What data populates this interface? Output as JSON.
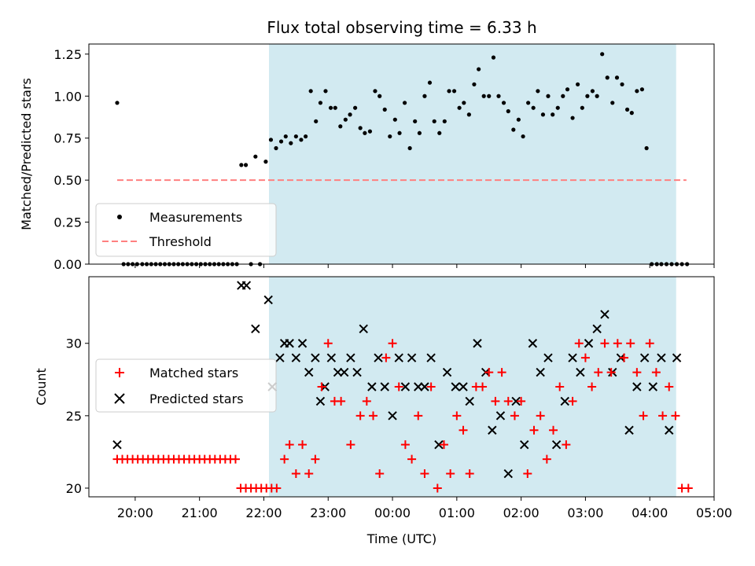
{
  "figure": {
    "title": "Flux total observing time = 6.33 h",
    "xlabel": "Time (UTC)",
    "xticks": [
      "20:00",
      "21:00",
      "22:00",
      "23:00",
      "00:00",
      "01:00",
      "02:00",
      "03:00",
      "04:00",
      "05:00"
    ],
    "x_range_hours": [
      19.28,
      29.0
    ],
    "observing_window_hours": [
      22.08,
      28.41
    ],
    "shade_color": "#add8e6",
    "chart_data": [
      {
        "type": "scatter",
        "ylabel": "Matched/Predicted stars",
        "ylim": [
          0,
          1.31
        ],
        "yticks": [
          "0.00",
          "0.25",
          "0.50",
          "0.75",
          "1.00",
          "1.25"
        ],
        "ytick_values": [
          0,
          0.25,
          0.5,
          0.75,
          1.0,
          1.25
        ],
        "legend": {
          "placement": "lower-left",
          "entries": [
            "Measurements",
            "Threshold"
          ]
        },
        "threshold": {
          "name": "Threshold",
          "value": 0.5,
          "x": [
            19.72,
            28.57
          ],
          "color": "#ff8080",
          "style": "dashed"
        },
        "series": [
          {
            "name": "Measurements",
            "color": "#000000",
            "x": [
              19.72,
              19.82,
              19.89,
              19.96,
              20.03,
              20.11,
              20.18,
              20.25,
              20.32,
              20.39,
              20.46,
              20.53,
              20.6,
              20.67,
              20.74,
              20.81,
              20.88,
              20.95,
              21.02,
              21.09,
              21.16,
              21.23,
              21.3,
              21.37,
              21.44,
              21.51,
              21.58,
              21.65,
              21.72,
              21.8,
              21.87,
              21.94,
              22.03,
              22.11,
              22.19,
              22.27,
              22.34,
              22.42,
              22.5,
              22.58,
              22.65,
              22.73,
              22.81,
              22.88,
              22.96,
              23.04,
              23.11,
              23.19,
              23.27,
              23.34,
              23.42,
              23.5,
              23.57,
              23.65,
              23.73,
              23.8,
              23.88,
              23.96,
              24.04,
              24.11,
              24.19,
              24.27,
              24.35,
              24.42,
              24.5,
              24.58,
              24.65,
              24.73,
              24.81,
              24.88,
              24.96,
              25.04,
              25.11,
              25.19,
              25.27,
              25.34,
              25.42,
              25.5,
              25.57,
              25.65,
              25.73,
              25.8,
              25.88,
              25.96,
              26.03,
              26.11,
              26.19,
              26.26,
              26.34,
              26.42,
              26.49,
              26.57,
              26.65,
              26.72,
              26.8,
              26.88,
              26.95,
              27.03,
              27.11,
              27.18,
              27.26,
              27.34,
              27.42,
              27.49,
              27.57,
              27.65,
              27.72,
              27.8,
              27.88,
              27.95,
              28.03,
              28.11,
              28.18,
              28.26,
              28.34,
              28.42,
              28.5,
              28.58
            ],
            "y": [
              0.96,
              0.0,
              0.0,
              0.0,
              0.0,
              0.0,
              0.0,
              0.0,
              0.0,
              0.0,
              0.0,
              0.0,
              0.0,
              0.0,
              0.0,
              0.0,
              0.0,
              0.0,
              0.0,
              0.0,
              0.0,
              0.0,
              0.0,
              0.0,
              0.0,
              0.0,
              0.0,
              0.59,
              0.59,
              0.0,
              0.64,
              0.0,
              0.61,
              0.74,
              0.69,
              0.73,
              0.76,
              0.72,
              0.76,
              0.74,
              0.76,
              1.03,
              0.85,
              0.96,
              1.03,
              0.93,
              0.93,
              0.82,
              0.86,
              0.89,
              0.93,
              0.81,
              0.78,
              0.79,
              1.03,
              1.0,
              0.92,
              0.76,
              0.86,
              0.78,
              0.96,
              0.69,
              0.85,
              0.78,
              1.0,
              1.08,
              0.85,
              0.78,
              0.85,
              1.03,
              1.03,
              0.93,
              0.96,
              0.89,
              1.07,
              1.16,
              1.0,
              1.0,
              1.23,
              1.0,
              0.96,
              0.91,
              0.8,
              0.86,
              0.76,
              0.96,
              0.93,
              1.03,
              0.89,
              1.0,
              0.89,
              0.93,
              1.0,
              1.04,
              0.87,
              1.07,
              0.93,
              1.0,
              1.03,
              1.0,
              1.25,
              1.11,
              0.96,
              1.11,
              1.07,
              0.92,
              0.9,
              1.03,
              1.04,
              0.69,
              0.0,
              0.0,
              0.0,
              0.0,
              0.0,
              0.0,
              0.0,
              0.0
            ]
          }
        ]
      },
      {
        "type": "scatter",
        "ylabel": "Count",
        "ylim": [
          19.4,
          34.6
        ],
        "yticks": [
          "20",
          "25",
          "30"
        ],
        "ytick_values": [
          20,
          25,
          30
        ],
        "legend": {
          "placement": "center-left",
          "entries": [
            "Matched stars",
            "Predicted stars"
          ]
        },
        "series": [
          {
            "name": "Matched stars",
            "color": "#ff0000",
            "marker": "plus",
            "x": [
              19.72,
              19.8,
              19.88,
              19.96,
              20.04,
              20.12,
              20.2,
              20.28,
              20.36,
              20.44,
              20.52,
              20.6,
              20.68,
              20.76,
              20.84,
              20.92,
              21.0,
              21.08,
              21.16,
              21.24,
              21.32,
              21.4,
              21.48,
              21.56,
              21.64,
              21.72,
              21.8,
              21.88,
              21.96,
              22.04,
              22.12,
              22.2,
              22.32,
              22.4,
              22.5,
              22.6,
              22.7,
              22.8,
              22.9,
              23.0,
              23.1,
              23.2,
              23.35,
              23.5,
              23.6,
              23.7,
              23.8,
              23.9,
              24.0,
              24.1,
              24.2,
              24.3,
              24.4,
              24.5,
              24.6,
              24.7,
              24.8,
              24.9,
              25.0,
              25.1,
              25.2,
              25.3,
              25.4,
              25.5,
              25.6,
              25.7,
              25.8,
              25.9,
              26.0,
              26.1,
              26.2,
              26.3,
              26.4,
              26.5,
              26.6,
              26.7,
              26.8,
              26.9,
              27.0,
              27.1,
              27.2,
              27.3,
              27.4,
              27.5,
              27.6,
              27.7,
              27.8,
              27.9,
              28.0,
              28.1,
              28.2,
              28.3,
              28.4,
              28.5,
              28.6
            ],
            "y": [
              22,
              22,
              22,
              22,
              22,
              22,
              22,
              22,
              22,
              22,
              22,
              22,
              22,
              22,
              22,
              22,
              22,
              22,
              22,
              22,
              22,
              22,
              22,
              22,
              20,
              20,
              20,
              20,
              20,
              20,
              20,
              20,
              22,
              23,
              21,
              23,
              21,
              22,
              27,
              30,
              26,
              26,
              23,
              25,
              26,
              25,
              21,
              29,
              30,
              27,
              23,
              22,
              25,
              21,
              27,
              20,
              23,
              21,
              25,
              24,
              21,
              27,
              27,
              28,
              26,
              28,
              26,
              25,
              26,
              21,
              24,
              25,
              22,
              24,
              27,
              23,
              26,
              30,
              29,
              27,
              28,
              30,
              28,
              30,
              29,
              30,
              28,
              25,
              30,
              28,
              25,
              27,
              25,
              20,
              20
            ]
          },
          {
            "name": "Predicted stars",
            "color": "#000000",
            "marker": "x",
            "x": [
              19.72,
              21.65,
              21.73,
              21.87,
              22.07,
              22.13,
              22.25,
              22.32,
              22.4,
              22.5,
              22.6,
              22.7,
              22.8,
              22.88,
              22.95,
              23.05,
              23.15,
              23.25,
              23.35,
              23.45,
              23.55,
              23.68,
              23.78,
              23.88,
              24.0,
              24.1,
              24.2,
              24.3,
              24.4,
              24.5,
              24.6,
              24.72,
              24.85,
              24.98,
              25.1,
              25.2,
              25.32,
              25.45,
              25.55,
              25.68,
              25.8,
              25.92,
              26.05,
              26.18,
              26.3,
              26.42,
              26.55,
              26.68,
              26.8,
              26.92,
              27.05,
              27.18,
              27.3,
              27.42,
              27.55,
              27.68,
              27.8,
              27.92,
              28.05,
              28.18,
              28.3,
              28.42
            ],
            "y": [
              23,
              34,
              34,
              31,
              33,
              27,
              29,
              30,
              30,
              29,
              30,
              28,
              29,
              26,
              27,
              29,
              28,
              28,
              29,
              28,
              31,
              27,
              29,
              27,
              25,
              29,
              27,
              29,
              27,
              27,
              29,
              23,
              28,
              27,
              27,
              26,
              30,
              28,
              24,
              25,
              21,
              26,
              23,
              30,
              28,
              29,
              23,
              26,
              29,
              28,
              30,
              31,
              32,
              28,
              29,
              24,
              27,
              29,
              27,
              29,
              24,
              29
            ]
          }
        ]
      }
    ]
  }
}
